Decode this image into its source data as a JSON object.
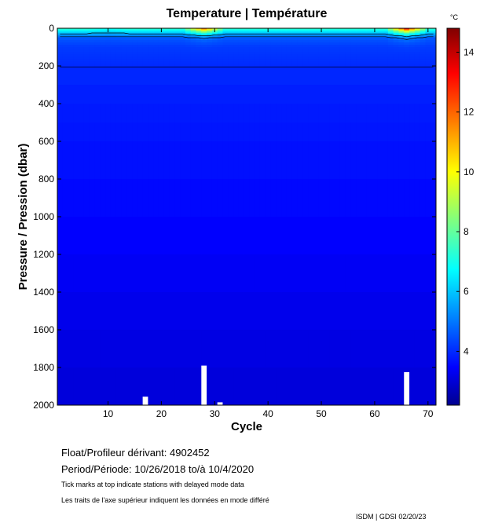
{
  "chart_data": {
    "type": "heatmap",
    "title": "Temperature | Température",
    "xlabel": "Cycle",
    "ylabel": "Pressure / Pression (dbar)",
    "xlim": [
      0.5,
      71.5
    ],
    "ylim": [
      2000,
      0
    ],
    "x_ticks": [
      10,
      20,
      30,
      40,
      50,
      60,
      70
    ],
    "y_ticks": [
      0,
      200,
      400,
      600,
      800,
      1000,
      1200,
      1400,
      1600,
      1800,
      2000
    ],
    "colorbar": {
      "unit": "°C",
      "range": [
        2.2,
        14.8
      ],
      "ticks": [
        4,
        6,
        8,
        10,
        12,
        14
      ],
      "colors": [
        "#00008f",
        "#0000ff",
        "#00ffff",
        "#ffff00",
        "#ff0000",
        "#800000"
      ]
    },
    "temperature_profile": {
      "pressure_dbar": [
        0,
        25,
        50,
        100,
        150,
        200,
        300,
        400,
        500,
        600,
        800,
        1000,
        1200,
        1400,
        1600,
        1800,
        2000
      ],
      "temperature_c": [
        7.5,
        6.0,
        4.6,
        4.2,
        4.1,
        4.0,
        3.9,
        3.8,
        3.75,
        3.7,
        3.6,
        3.5,
        3.4,
        3.3,
        3.2,
        3.1,
        3.0
      ]
    },
    "warm_surface_cycles": [
      {
        "cycle": 28,
        "surface_temp_c": 12.5
      },
      {
        "cycle": 66,
        "surface_temp_c": 14.2
      },
      {
        "cycle": 10,
        "surface_temp_c": 7.0
      }
    ],
    "contour_levels": [
      4,
      5,
      6
    ],
    "missing_data_bars": [
      {
        "cycle": 17,
        "from_dbar": 1955,
        "to_dbar": 2000
      },
      {
        "cycle": 28,
        "from_dbar": 1790,
        "to_dbar": 2000
      },
      {
        "cycle": 31,
        "from_dbar": 1985,
        "to_dbar": 2000
      },
      {
        "cycle": 66,
        "from_dbar": 1825,
        "to_dbar": 2000
      }
    ]
  },
  "info": {
    "float_label": "Float/Profileur dérivant:",
    "float_id": "4902452",
    "period_label": "Period/Période:",
    "period_start": "10/26/2018",
    "period_to": "to/à",
    "period_end": "10/4/2020",
    "note_en": "Tick marks at top indicate stations with delayed mode data",
    "note_fr": "Les traits de l'axe supérieur indiquent les données en mode différé",
    "credit": "ISDM | GDSI",
    "date": "02/20/23"
  }
}
